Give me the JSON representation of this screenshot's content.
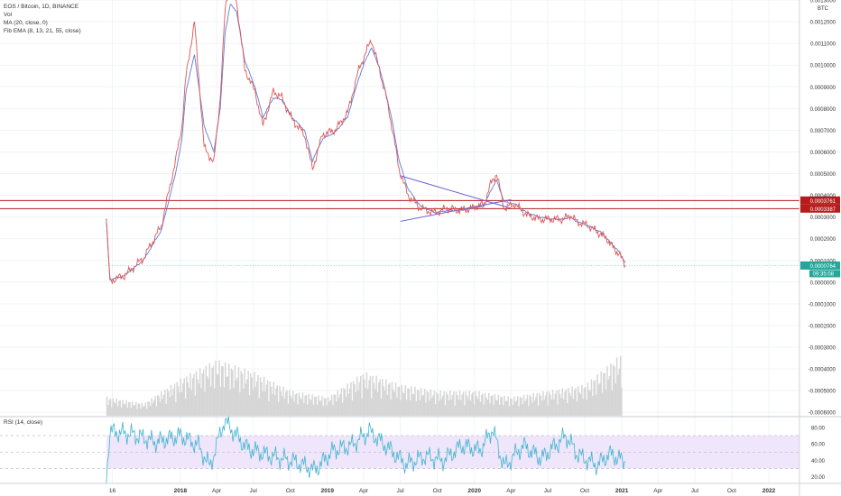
{
  "header": {
    "symbol_line": "EOS / Bitcoin, 1D, BINANCE",
    "indicators": [
      "Vol",
      "MA (20, close, 0)",
      "Fib EMA (8, 13, 21, 55, close)"
    ]
  },
  "rsi_label": "RSI (14, close)",
  "colors": {
    "price_line": "#e05555",
    "ma_line": "#5c7cd8",
    "trendline": "#6b5bd6",
    "hline": "#b71c1c",
    "rsi_line": "#3fb4cf",
    "rsi_band": "#f0e6fb",
    "volume": "#d6d6d6",
    "last_price_badge": "#26a69a"
  },
  "chart_data": [
    {
      "type": "line",
      "name": "price",
      "x_ticks": [
        "16",
        "2018",
        "Apr",
        "Jul",
        "Oct",
        "2019",
        "Apr",
        "Jul",
        "Oct",
        "2020",
        "Apr",
        "Jul",
        "Oct",
        "2021",
        "Apr",
        "Jul",
        "Oct",
        "2022"
      ],
      "y_axis_label": "BTC",
      "y_ticks": [
        "0.0013000",
        "0.0012000",
        "0.0011000",
        "0.0010000",
        "0.0009000",
        "0.0008000",
        "0.0007000",
        "0.0006000",
        "0.0005000",
        "0.0004000",
        "0.0003000",
        "0.0002000",
        "0.0001000",
        "0.0000000",
        "-0.0001000",
        "-0.0002000",
        "-0.0003000",
        "-0.0004000",
        "-0.0005000",
        "-0.0006000"
      ],
      "ylim": [
        -0.00062,
        0.0013
      ],
      "x": [
        "2017-07-01",
        "2017-07-10",
        "2017-08-15",
        "2017-10-01",
        "2017-11-15",
        "2017-12-20",
        "2018-01-05",
        "2018-01-15",
        "2018-02-05",
        "2018-03-01",
        "2018-03-25",
        "2018-04-10",
        "2018-04-22",
        "2018-05-05",
        "2018-05-20",
        "2018-06-10",
        "2018-07-05",
        "2018-07-25",
        "2018-08-20",
        "2018-09-10",
        "2018-10-05",
        "2018-11-05",
        "2018-11-25",
        "2018-12-20",
        "2019-01-20",
        "2019-02-20",
        "2019-03-20",
        "2019-04-05",
        "2019-04-20",
        "2019-05-10",
        "2019-05-25",
        "2019-06-10",
        "2019-06-28",
        "2019-07-20",
        "2019-08-20",
        "2019-09-25",
        "2019-10-25",
        "2019-11-25",
        "2019-12-25",
        "2020-01-25",
        "2020-02-10",
        "2020-02-25",
        "2020-03-15",
        "2020-04-10",
        "2020-05-10",
        "2020-06-10",
        "2020-07-10",
        "2020-08-10",
        "2020-08-25",
        "2020-09-10",
        "2020-10-10",
        "2020-11-10",
        "2020-11-25",
        "2020-12-10",
        "2020-12-25",
        "2021-01-10"
      ],
      "values": [
        0.00029,
        5e-06,
        3e-05,
        0.00011,
        0.00026,
        0.00056,
        0.00072,
        0.00095,
        0.0012,
        0.00062,
        0.00055,
        0.00085,
        0.00125,
        0.0014,
        0.0013,
        0.00098,
        0.00088,
        0.00072,
        0.00088,
        0.00085,
        0.00075,
        0.00068,
        0.00052,
        0.00068,
        0.0007,
        0.00078,
        0.00098,
        0.00105,
        0.00112,
        0.00098,
        0.00087,
        0.00072,
        0.00052,
        0.0004,
        0.00034,
        0.00032,
        0.00034,
        0.00033,
        0.00034,
        0.00036,
        0.00045,
        0.0005,
        0.00034,
        0.00036,
        0.00031,
        0.00029,
        0.00029,
        0.00029,
        0.00031,
        0.00028,
        0.00026,
        0.00022,
        0.0002,
        0.00016,
        0.00013,
        7.6e-05
      ],
      "ma_values": [
        0.00029,
        1e-05,
        3e-05,
        0.0001,
        0.00024,
        0.0005,
        0.00066,
        0.00088,
        0.00105,
        0.00072,
        0.0006,
        0.0008,
        0.00115,
        0.00128,
        0.00125,
        0.00102,
        0.0009,
        0.00076,
        0.00085,
        0.00084,
        0.00076,
        0.0007,
        0.00056,
        0.00066,
        0.00069,
        0.00076,
        0.00094,
        0.00102,
        0.00108,
        0.00099,
        0.00088,
        0.00075,
        0.00056,
        0.00043,
        0.00035,
        0.00032,
        0.00033,
        0.00033,
        0.00034,
        0.00035,
        0.00042,
        0.00047,
        0.00037,
        0.00036,
        0.00032,
        0.0003,
        0.00029,
        0.00029,
        0.0003,
        0.00028,
        0.00026,
        0.00023,
        0.0002,
        0.00017,
        0.00014,
        9e-05
      ],
      "hlines": [
        "0.0003761",
        "0.0003387"
      ],
      "trendlines": [
        {
          "from": [
            "2019-07-01",
            0.00049
          ],
          "to": [
            "2020-04-01",
            0.00034
          ]
        },
        {
          "from": [
            "2019-07-01",
            0.00028
          ],
          "to": [
            "2020-04-01",
            0.00038
          ]
        }
      ],
      "last_price": "0.0000764",
      "countdown": "09:35:08"
    },
    {
      "type": "bar",
      "name": "volume",
      "x": [
        "2017-07-01",
        "2017-10-01",
        "2018-01-01",
        "2018-04-01",
        "2018-07-01",
        "2018-10-01",
        "2019-01-01",
        "2019-04-01",
        "2019-07-01",
        "2019-10-01",
        "2020-01-01",
        "2020-04-01",
        "2020-07-01",
        "2020-10-01",
        "2021-01-01"
      ],
      "values": [
        0.3,
        0.2,
        0.6,
        0.9,
        0.7,
        0.4,
        0.3,
        0.7,
        0.5,
        0.4,
        0.4,
        0.3,
        0.4,
        0.5,
        1.0
      ]
    },
    {
      "type": "line",
      "name": "RSI",
      "y_ticks": [
        "80.00",
        "60.00",
        "40.00",
        "20.00"
      ],
      "ylim": [
        12,
        92
      ],
      "band": [
        30,
        70
      ],
      "x": [
        "2017-07-01",
        "2017-07-10",
        "2017-09-01",
        "2017-11-01",
        "2018-01-01",
        "2018-02-15",
        "2018-03-15",
        "2018-04-20",
        "2018-06-15",
        "2018-08-15",
        "2018-10-15",
        "2018-12-01",
        "2019-01-15",
        "2019-03-01",
        "2019-04-15",
        "2019-06-01",
        "2019-07-15",
        "2019-09-01",
        "2019-10-15",
        "2019-12-01",
        "2020-01-15",
        "2020-02-15",
        "2020-03-15",
        "2020-05-01",
        "2020-06-15",
        "2020-08-15",
        "2020-09-15",
        "2020-11-01",
        "2020-12-01",
        "2021-01-10"
      ],
      "values": [
        20,
        75,
        72,
        62,
        70,
        58,
        32,
        88,
        55,
        45,
        38,
        28,
        52,
        58,
        75,
        55,
        35,
        45,
        40,
        58,
        52,
        78,
        32,
        58,
        42,
        70,
        46,
        34,
        48,
        38
      ]
    }
  ]
}
